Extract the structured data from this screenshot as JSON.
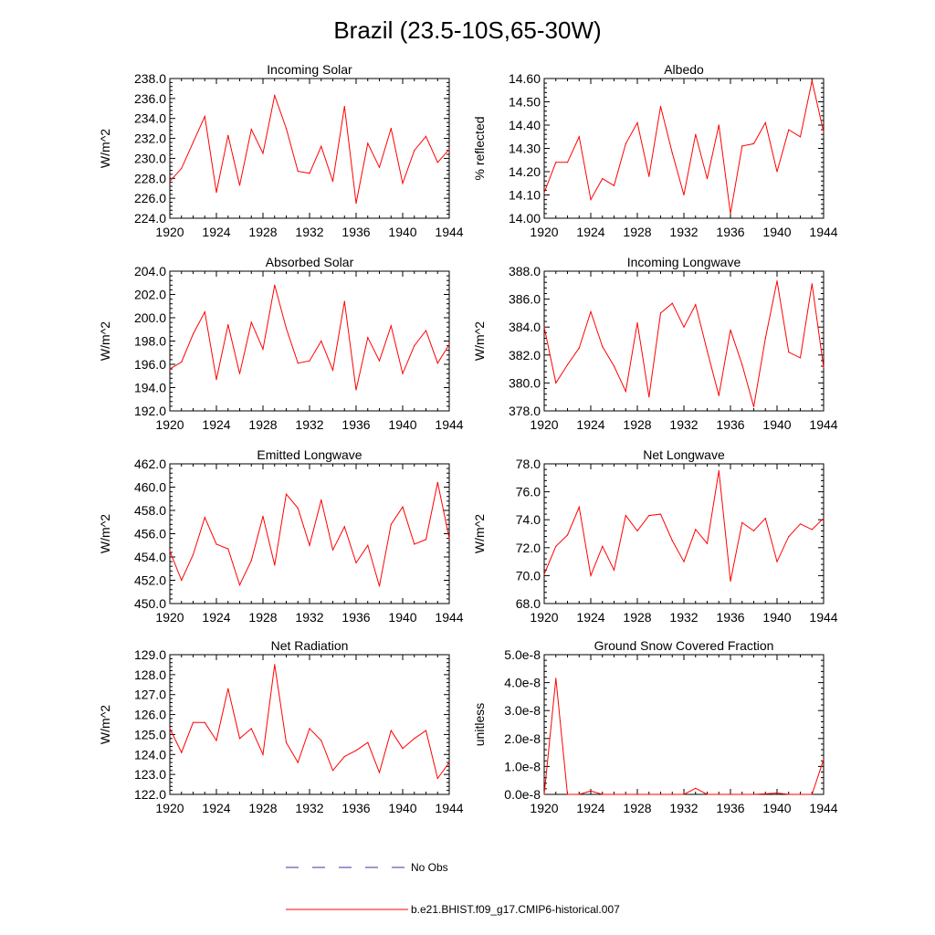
{
  "figure": {
    "title": "Brazil (23.5-10S,65-30W)",
    "legend": {
      "obs_label": "No Obs",
      "model_label": "b.e21.BHIST.f09_g17.CMIP6-historical.007",
      "obs_color": "#3333aa",
      "model_color": "#ff0000"
    }
  },
  "chart_data": [
    {
      "type": "line",
      "title": "Incoming Solar",
      "ylabel": "W/m^2",
      "ylim": [
        224,
        238
      ],
      "yticks": [
        "224.0",
        "226.0",
        "228.0",
        "230.0",
        "232.0",
        "234.0",
        "236.0",
        "238.0"
      ],
      "xlim": [
        1920,
        1944
      ],
      "xticks": [
        "1920",
        "1924",
        "1928",
        "1932",
        "1936",
        "1940",
        "1944"
      ],
      "x": [
        1920,
        1921,
        1922,
        1923,
        1924,
        1925,
        1926,
        1927,
        1928,
        1929,
        1930,
        1931,
        1932,
        1933,
        1934,
        1935,
        1936,
        1937,
        1938,
        1939,
        1940,
        1941,
        1942,
        1943,
        1944
      ],
      "values": [
        227.7,
        229.0,
        231.6,
        234.2,
        226.6,
        232.3,
        227.3,
        232.9,
        230.5,
        236.3,
        233.0,
        228.7,
        228.5,
        231.2,
        227.7,
        235.2,
        225.5,
        231.5,
        229.1,
        233.0,
        227.5,
        230.8,
        232.2,
        229.6,
        230.9
      ]
    },
    {
      "type": "line",
      "title": "Albedo",
      "ylabel": "% reflected",
      "ylim": [
        14.0,
        14.6
      ],
      "yticks": [
        "14.00",
        "14.10",
        "14.20",
        "14.30",
        "14.40",
        "14.50",
        "14.60"
      ],
      "xlim": [
        1920,
        1944
      ],
      "xticks": [
        "1920",
        "1924",
        "1928",
        "1932",
        "1936",
        "1940",
        "1944"
      ],
      "x": [
        1920,
        1921,
        1922,
        1923,
        1924,
        1925,
        1926,
        1927,
        1928,
        1929,
        1930,
        1931,
        1932,
        1933,
        1934,
        1935,
        1936,
        1937,
        1938,
        1939,
        1940,
        1941,
        1942,
        1943,
        1944
      ],
      "values": [
        14.11,
        14.24,
        14.24,
        14.35,
        14.08,
        14.17,
        14.14,
        14.32,
        14.41,
        14.18,
        14.48,
        14.28,
        14.1,
        14.36,
        14.17,
        14.4,
        14.02,
        14.31,
        14.32,
        14.41,
        14.2,
        14.38,
        14.35,
        14.59,
        14.37
      ]
    },
    {
      "type": "line",
      "title": "Absorbed Solar",
      "ylabel": "W/m^2",
      "ylim": [
        192,
        204
      ],
      "yticks": [
        "192.0",
        "194.0",
        "196.0",
        "198.0",
        "200.0",
        "202.0",
        "204.0"
      ],
      "xlim": [
        1920,
        1944
      ],
      "xticks": [
        "1920",
        "1924",
        "1928",
        "1932",
        "1936",
        "1940",
        "1944"
      ],
      "x": [
        1920,
        1921,
        1922,
        1923,
        1924,
        1925,
        1926,
        1927,
        1928,
        1929,
        1930,
        1931,
        1932,
        1933,
        1934,
        1935,
        1936,
        1937,
        1938,
        1939,
        1940,
        1941,
        1942,
        1943,
        1944
      ],
      "values": [
        195.6,
        196.2,
        198.6,
        200.5,
        194.7,
        199.4,
        195.2,
        199.6,
        197.3,
        202.8,
        199.1,
        196.1,
        196.3,
        198.0,
        195.5,
        201.4,
        193.8,
        198.3,
        196.3,
        199.3,
        195.2,
        197.6,
        198.9,
        196.1,
        197.7
      ]
    },
    {
      "type": "line",
      "title": "Incoming Longwave",
      "ylabel": "W/m^2",
      "ylim": [
        378,
        388
      ],
      "yticks": [
        "378.0",
        "380.0",
        "382.0",
        "384.0",
        "386.0",
        "388.0"
      ],
      "xlim": [
        1920,
        1944
      ],
      "xticks": [
        "1920",
        "1924",
        "1928",
        "1932",
        "1936",
        "1940",
        "1944"
      ],
      "x": [
        1920,
        1921,
        1922,
        1923,
        1924,
        1925,
        1926,
        1927,
        1928,
        1929,
        1930,
        1931,
        1932,
        1933,
        1934,
        1935,
        1936,
        1937,
        1938,
        1939,
        1940,
        1941,
        1942,
        1943,
        1944
      ],
      "values": [
        384.0,
        380.0,
        381.3,
        382.5,
        385.1,
        382.6,
        381.2,
        379.4,
        384.3,
        379.0,
        385.0,
        385.7,
        384.0,
        385.6,
        382.3,
        379.1,
        383.8,
        381.3,
        378.3,
        383.2,
        387.3,
        382.2,
        381.8,
        387.1,
        381.1
      ]
    },
    {
      "type": "line",
      "title": "Emitted Longwave",
      "ylabel": "W/m^2",
      "ylim": [
        450,
        462
      ],
      "yticks": [
        "450.0",
        "452.0",
        "454.0",
        "456.0",
        "458.0",
        "460.0",
        "462.0"
      ],
      "xlim": [
        1920,
        1944
      ],
      "xticks": [
        "1920",
        "1924",
        "1928",
        "1932",
        "1936",
        "1940",
        "1944"
      ],
      "x": [
        1920,
        1921,
        1922,
        1923,
        1924,
        1925,
        1926,
        1927,
        1928,
        1929,
        1930,
        1931,
        1932,
        1933,
        1934,
        1935,
        1936,
        1937,
        1938,
        1939,
        1940,
        1941,
        1942,
        1943,
        1944
      ],
      "values": [
        454.5,
        452.0,
        454.2,
        457.4,
        455.1,
        454.7,
        451.6,
        453.7,
        457.5,
        453.3,
        459.4,
        458.2,
        455.0,
        458.9,
        454.6,
        456.6,
        453.5,
        455.0,
        451.5,
        456.8,
        458.3,
        455.1,
        455.5,
        460.4,
        455.6
      ]
    },
    {
      "type": "line",
      "title": "Net Longwave",
      "ylabel": "W/m^2",
      "ylim": [
        68,
        78
      ],
      "yticks": [
        "68.0",
        "70.0",
        "72.0",
        "74.0",
        "76.0",
        "78.0"
      ],
      "xlim": [
        1920,
        1944
      ],
      "xticks": [
        "1920",
        "1924",
        "1928",
        "1932",
        "1936",
        "1940",
        "1944"
      ],
      "x": [
        1920,
        1921,
        1922,
        1923,
        1924,
        1925,
        1926,
        1927,
        1928,
        1929,
        1930,
        1931,
        1932,
        1933,
        1934,
        1935,
        1936,
        1937,
        1938,
        1939,
        1940,
        1941,
        1942,
        1943,
        1944
      ],
      "values": [
        70.1,
        72.1,
        72.9,
        74.9,
        70.0,
        72.1,
        70.4,
        74.3,
        73.2,
        74.3,
        74.4,
        72.5,
        71.0,
        73.3,
        72.3,
        77.5,
        69.6,
        73.8,
        73.2,
        74.1,
        71.0,
        72.8,
        73.7,
        73.3,
        74.1
      ]
    },
    {
      "type": "line",
      "title": "Net Radiation",
      "ylabel": "W/m^2",
      "ylim": [
        122,
        129
      ],
      "yticks": [
        "122.0",
        "123.0",
        "124.0",
        "125.0",
        "126.0",
        "127.0",
        "128.0",
        "129.0"
      ],
      "xlim": [
        1920,
        1944
      ],
      "xticks": [
        "1920",
        "1924",
        "1928",
        "1932",
        "1936",
        "1940",
        "1944"
      ],
      "x": [
        1920,
        1921,
        1922,
        1923,
        1924,
        1925,
        1926,
        1927,
        1928,
        1929,
        1930,
        1931,
        1932,
        1933,
        1934,
        1935,
        1936,
        1937,
        1938,
        1939,
        1940,
        1941,
        1942,
        1943,
        1944
      ],
      "values": [
        125.3,
        124.1,
        125.6,
        125.6,
        124.7,
        127.3,
        124.8,
        125.3,
        124.0,
        128.5,
        124.6,
        123.6,
        125.3,
        124.7,
        123.2,
        123.9,
        124.2,
        124.6,
        123.1,
        125.2,
        124.3,
        124.8,
        125.2,
        122.8,
        123.6
      ]
    },
    {
      "type": "line",
      "title": "Ground Snow Covered Fraction",
      "ylabel": "unitless",
      "ylim": [
        0,
        5e-08
      ],
      "yticks": [
        "0.0e-8",
        "1.0e-8",
        "2.0e-8",
        "3.0e-8",
        "4.0e-8",
        "5.0e-8"
      ],
      "xlim": [
        1920,
        1944
      ],
      "xticks": [
        "1920",
        "1924",
        "1928",
        "1932",
        "1936",
        "1940",
        "1944"
      ],
      "x": [
        1920,
        1921,
        1922,
        1923,
        1924,
        1925,
        1926,
        1927,
        1928,
        1929,
        1930,
        1931,
        1932,
        1933,
        1934,
        1935,
        1936,
        1937,
        1938,
        1939,
        1940,
        1941,
        1942,
        1943,
        1944
      ],
      "values": [
        0.0,
        4.15e-08,
        0.0,
        0.0,
        1.2e-09,
        0.0,
        0.0,
        0.0,
        0.0,
        0.0,
        0.0,
        0.0,
        0.0,
        2.2e-09,
        0.0,
        0.0,
        0.0,
        0.0,
        0.0,
        2e-10,
        5e-10,
        0.0,
        0.0,
        0.0,
        1.25e-08
      ]
    }
  ]
}
